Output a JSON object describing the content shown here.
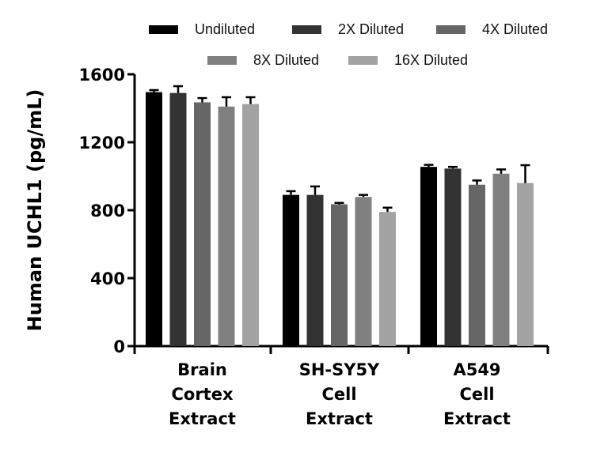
{
  "chart_data": {
    "type": "bar",
    "title": "",
    "xlabel": "",
    "ylabel": "Human UCHL1 (pg/mL)",
    "ylim": [
      0,
      1600
    ],
    "yticks": [
      0,
      400,
      800,
      1200,
      1600
    ],
    "grid": false,
    "legend_position": "top",
    "categories": [
      [
        "Brain",
        "Cortex",
        "Extract"
      ],
      [
        "SH-SY5Y",
        "Cell",
        "Extract"
      ],
      [
        "A549",
        "Cell",
        "Extract"
      ]
    ],
    "series": [
      {
        "name": "Undiluted",
        "color": "#000000",
        "values": [
          1495,
          890,
          1055
        ],
        "errors": [
          12,
          22,
          12
        ]
      },
      {
        "name": "2X Diluted",
        "color": "#333333",
        "values": [
          1490,
          890,
          1045
        ],
        "errors": [
          40,
          50,
          10
        ]
      },
      {
        "name": "4X Diluted",
        "color": "#666666",
        "values": [
          1435,
          835,
          950
        ],
        "errors": [
          25,
          8,
          25
        ]
      },
      {
        "name": "8X Diluted",
        "color": "#808080",
        "values": [
          1410,
          878,
          1015
        ],
        "errors": [
          55,
          12,
          25
        ]
      },
      {
        "name": "16X Diluted",
        "color": "#a3a3a3",
        "values": [
          1425,
          790,
          960
        ],
        "errors": [
          40,
          25,
          105
        ]
      }
    ]
  }
}
